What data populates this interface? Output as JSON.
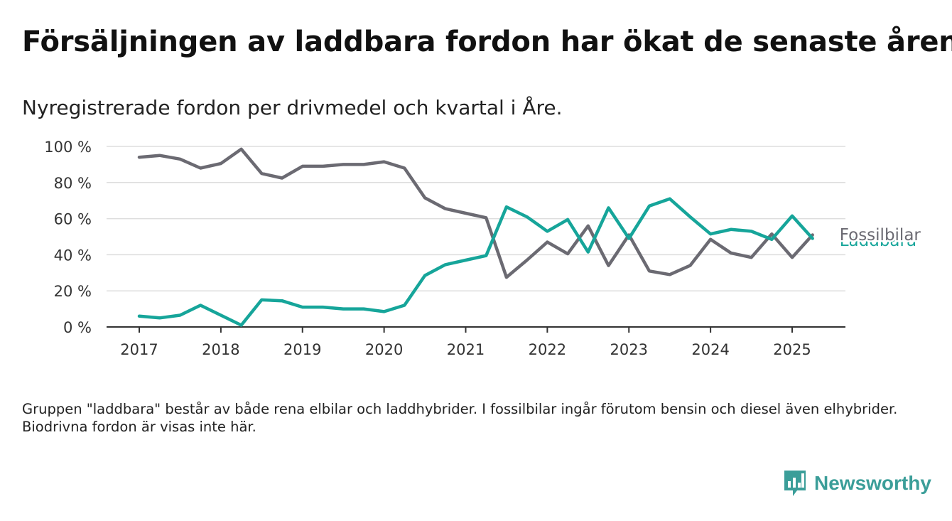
{
  "title": "Försäljningen av laddbara fordon har ökat de senaste åren",
  "subtitle": "Nyregistrerade fordon per drivmedel och kvartal i Åre.",
  "footnote": "Gruppen \"laddbara\" består av både rena elbilar och laddhybrider. I fossilbilar ingår förutom bensin och diesel även elhybrider. Biodrivna fordon är visas inte här.",
  "brand": {
    "name": "Newsworthy",
    "icon": "newsworthy-logo-icon",
    "color": "#3b9e99"
  },
  "chart_data": {
    "type": "line",
    "ylim": [
      0,
      100
    ],
    "xlim": [
      2016.6,
      2025.65
    ],
    "yticks": [
      0,
      20,
      40,
      60,
      80,
      100
    ],
    "ytick_labels": [
      "0 %",
      "20 %",
      "40 %",
      "60 %",
      "80 %",
      "100 %"
    ],
    "xticks": [
      2017,
      2018,
      2019,
      2020,
      2021,
      2022,
      2023,
      2024,
      2025
    ],
    "xtick_labels": [
      "2017",
      "2018",
      "2019",
      "2020",
      "2021",
      "2022",
      "2023",
      "2024",
      "2025"
    ],
    "grid": true,
    "x": [
      2017.0,
      2017.25,
      2017.5,
      2017.75,
      2018.0,
      2018.25,
      2018.5,
      2018.75,
      2019.0,
      2019.25,
      2019.5,
      2019.75,
      2020.0,
      2020.25,
      2020.5,
      2020.75,
      2021.0,
      2021.25,
      2021.5,
      2021.75,
      2022.0,
      2022.25,
      2022.5,
      2022.75,
      2023.0,
      2023.25,
      2023.5,
      2023.75,
      2024.0,
      2024.25,
      2024.5,
      2024.75,
      2025.0,
      2025.25
    ],
    "series": [
      {
        "name": "Fossilbilar",
        "color": "#6b6a72",
        "values": [
          94,
          95,
          93,
          88,
          90.5,
          98.5,
          85,
          82.5,
          89,
          89,
          90,
          90,
          91.5,
          88,
          71.5,
          65.5,
          63,
          60.5,
          27.5,
          37,
          47,
          40.5,
          56,
          34,
          51,
          31,
          29,
          34,
          48.5,
          41,
          38.5,
          51.5,
          38.5,
          51
        ]
      },
      {
        "name": "Laddbara",
        "color": "#16a59a",
        "values": [
          6,
          5,
          6.5,
          12,
          6.5,
          1,
          15,
          14.5,
          11,
          11,
          10,
          10,
          8.5,
          12,
          28.5,
          34.5,
          37,
          39.5,
          66.5,
          61,
          53,
          59.5,
          41.5,
          66,
          49,
          67,
          71,
          61,
          51.5,
          54,
          53,
          48.5,
          61.5,
          49
        ]
      }
    ]
  }
}
